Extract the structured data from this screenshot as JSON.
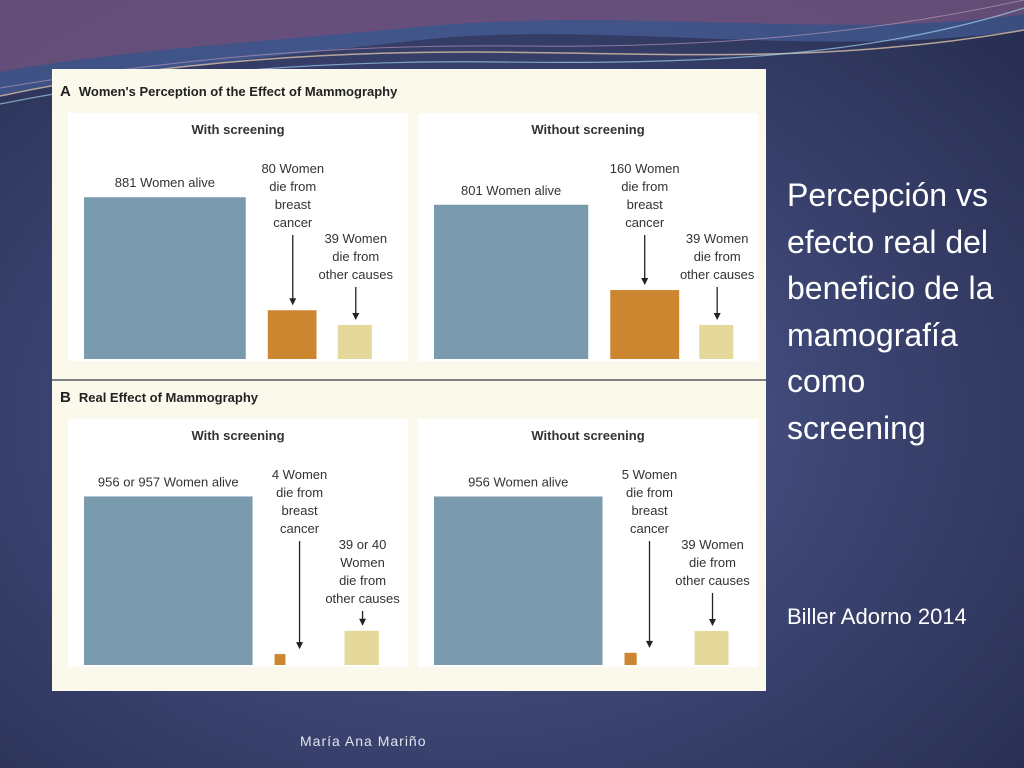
{
  "colors": {
    "alive": "#7a9aad",
    "breast_cancer": "#cd8630",
    "other_causes": "#e4d99a",
    "text": "#333333",
    "arrow": "#222222"
  },
  "side": {
    "title": "Percepción vs efecto real del beneficio de la mamografía como screening",
    "citation": "Biller Adorno 2014"
  },
  "footer": {
    "author": "María Ana Mariño"
  },
  "figure": {
    "panel_a": {
      "letter": "A",
      "title": "Women's Perception of the Effect of Mammography"
    },
    "panel_b": {
      "letter": "B",
      "title": "Real Effect of Mammography"
    }
  },
  "chart_data": [
    {
      "type": "bar",
      "title": "With screening",
      "categories": [
        "881 Women alive",
        "80 Women die from breast cancer",
        "39 Women die from other causes"
      ],
      "values": [
        881,
        80,
        39
      ]
    },
    {
      "type": "bar",
      "title": "Without screening",
      "categories": [
        "801 Women alive",
        "160 Women die from breast cancer",
        "39 Women die from other causes"
      ],
      "values": [
        801,
        160,
        39
      ]
    },
    {
      "type": "bar",
      "title": "With screening",
      "categories": [
        "956 or 957 Women alive",
        "4 Women die from breast cancer",
        "39 or 40 Women die from other causes"
      ],
      "values": [
        956.5,
        4,
        39.5
      ]
    },
    {
      "type": "bar",
      "title": "Without screening",
      "categories": [
        "956 Women alive",
        "5 Women die from breast cancer",
        "39 Women die from other causes"
      ],
      "values": [
        956,
        5,
        39
      ]
    }
  ]
}
